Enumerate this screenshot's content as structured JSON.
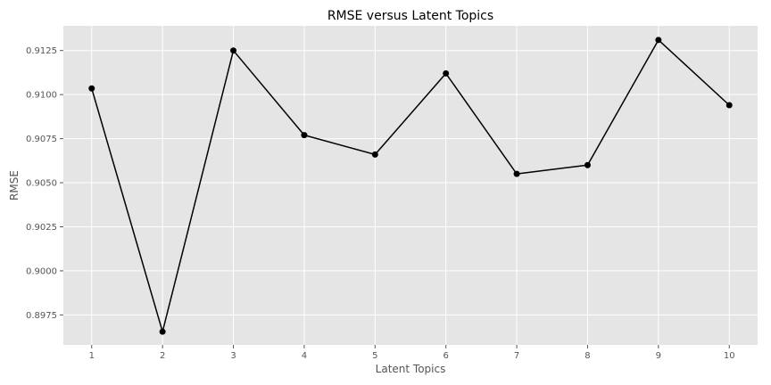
{
  "chart_data": {
    "type": "line",
    "title": "RMSE versus Latent Topics",
    "xlabel": "Latent Topics",
    "ylabel": "RMSE",
    "x": [
      1,
      2,
      3,
      4,
      5,
      6,
      7,
      8,
      9,
      10
    ],
    "series": [
      {
        "values": [
          0.91035,
          0.89655,
          0.9125,
          0.9077,
          0.9066,
          0.9112,
          0.9055,
          0.906,
          0.9131,
          0.9094
        ]
      }
    ],
    "xlim": [
      0.6,
      10.4
    ],
    "ylim": [
      0.8958,
      0.9139
    ],
    "xticks": [
      1,
      2,
      3,
      4,
      5,
      6,
      7,
      8,
      9,
      10
    ],
    "xtick_labels": [
      "1",
      "2",
      "3",
      "4",
      "5",
      "6",
      "7",
      "8",
      "9",
      "10"
    ],
    "yticks": [
      0.8975,
      0.9,
      0.9025,
      0.905,
      0.9075,
      0.91,
      0.9125
    ],
    "ytick_labels": [
      "0.8975",
      "0.9000",
      "0.9025",
      "0.9050",
      "0.9075",
      "0.9100",
      "0.9125"
    ],
    "grid": true,
    "style": {
      "background": "#e5e5e5",
      "grid_color": "#ffffff",
      "line_color": "#000000",
      "marker_color": "#000000"
    }
  }
}
